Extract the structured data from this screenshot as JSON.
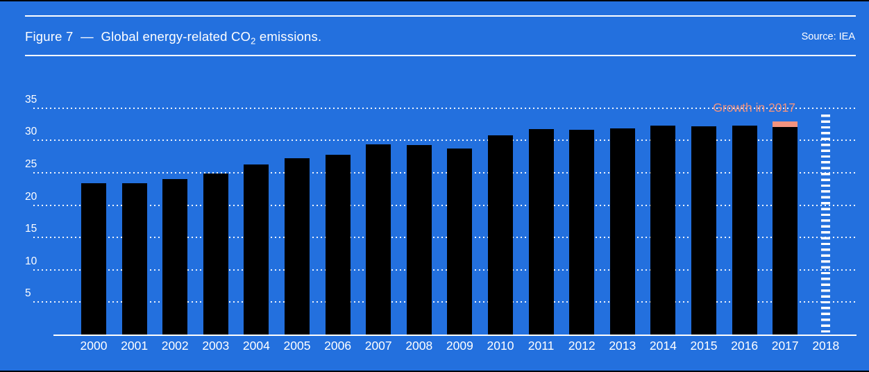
{
  "page": {
    "background_color": "#2370DE",
    "text_color": "#FFFFFF"
  },
  "header": {
    "title_prefix": "Figure 7  —  Global energy-related CO",
    "title_sub": "2",
    "title_suffix": " emissions.",
    "source": "Source: IEA"
  },
  "chart_data": {
    "type": "bar",
    "title": "Global energy-related CO2 emissions",
    "xlabel": "",
    "ylabel": "",
    "ylim": [
      0,
      36.5
    ],
    "yticks": [
      5,
      10,
      15,
      20,
      25,
      30,
      35
    ],
    "grid": "dotted-horizontal",
    "categories": [
      "2000",
      "2001",
      "2002",
      "2003",
      "2004",
      "2005",
      "2006",
      "2007",
      "2008",
      "2009",
      "2010",
      "2011",
      "2012",
      "2013",
      "2014",
      "2015",
      "2016",
      "2017",
      "2018"
    ],
    "values": [
      23.4,
      23.4,
      24.0,
      24.9,
      26.3,
      27.2,
      27.8,
      29.4,
      29.3,
      28.8,
      30.8,
      31.8,
      31.7,
      31.9,
      32.3,
      32.2,
      32.3,
      32.9,
      34.0
    ],
    "bars": [
      {
        "year": "2000",
        "value": 23.4,
        "style": "solid"
      },
      {
        "year": "2001",
        "value": 23.4,
        "style": "solid"
      },
      {
        "year": "2002",
        "value": 24.0,
        "style": "solid"
      },
      {
        "year": "2003",
        "value": 24.9,
        "style": "solid"
      },
      {
        "year": "2004",
        "value": 26.3,
        "style": "solid"
      },
      {
        "year": "2005",
        "value": 27.2,
        "style": "solid"
      },
      {
        "year": "2006",
        "value": 27.8,
        "style": "solid"
      },
      {
        "year": "2007",
        "value": 29.4,
        "style": "solid"
      },
      {
        "year": "2008",
        "value": 29.3,
        "style": "solid"
      },
      {
        "year": "2009",
        "value": 28.8,
        "style": "solid"
      },
      {
        "year": "2010",
        "value": 30.8,
        "style": "solid"
      },
      {
        "year": "2011",
        "value": 31.8,
        "style": "solid"
      },
      {
        "year": "2012",
        "value": 31.7,
        "style": "solid"
      },
      {
        "year": "2013",
        "value": 31.9,
        "style": "solid"
      },
      {
        "year": "2014",
        "value": 32.3,
        "style": "solid"
      },
      {
        "year": "2015",
        "value": 32.2,
        "style": "solid"
      },
      {
        "year": "2016",
        "value": 32.3,
        "style": "solid"
      },
      {
        "year": "2017",
        "value": 32.1,
        "growth": 0.8,
        "style": "solid"
      },
      {
        "year": "2018",
        "value": 34.0,
        "style": "striped"
      }
    ],
    "annotation": {
      "text": "Growth in 2017",
      "color": "#F2937F"
    },
    "colors": {
      "bar": "#000000",
      "growth_segment": "#F2937F",
      "striped_bar": "#FFFFFF",
      "background": "#2370DE",
      "axis_text": "#FFFFFF"
    },
    "legend": "none"
  }
}
